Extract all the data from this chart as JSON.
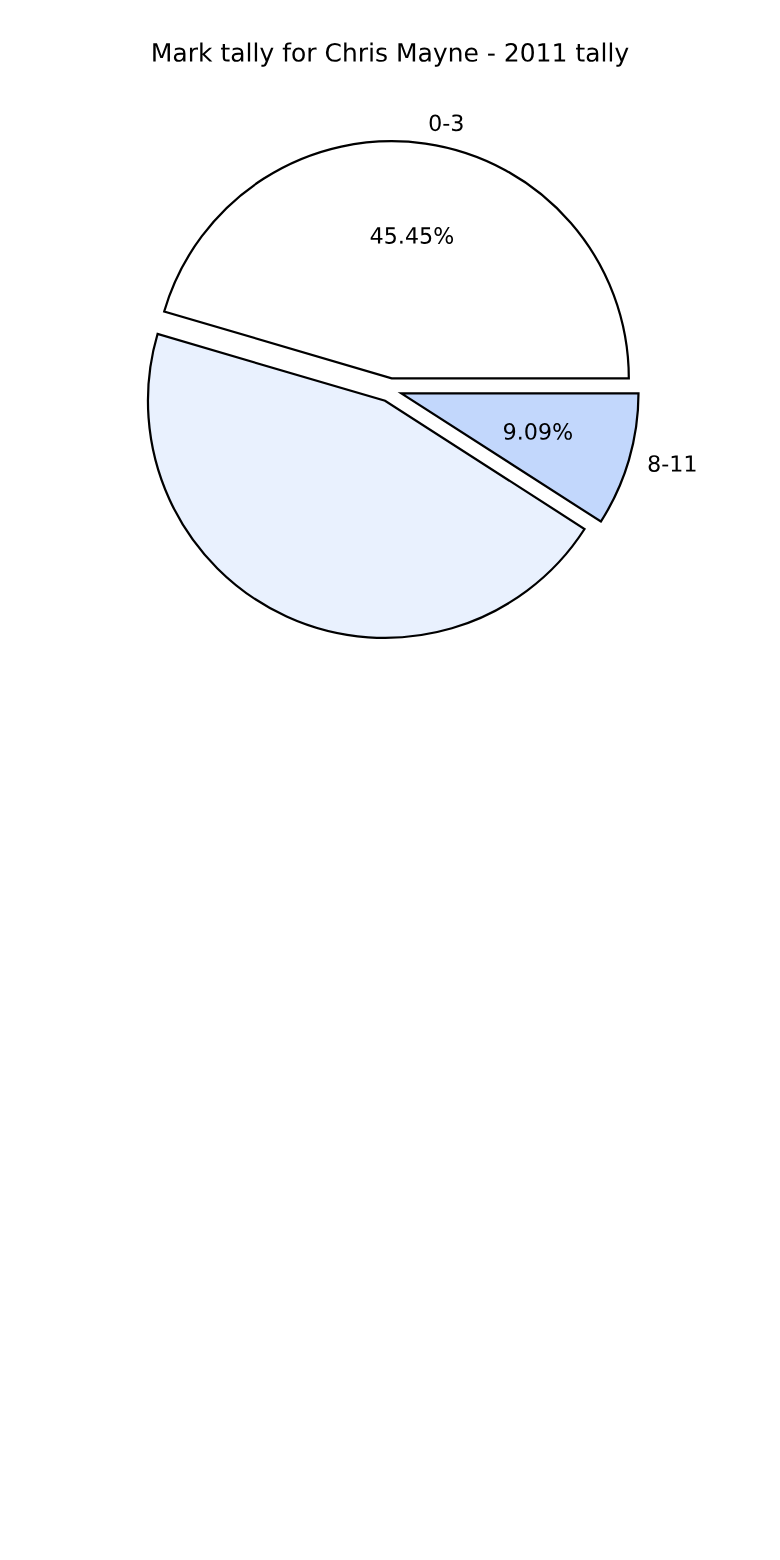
{
  "chart_data": {
    "type": "pie",
    "title": "Mark tally for Chris Mayne - 2011 tally",
    "categories": [
      "0-3",
      null,
      "8-11"
    ],
    "values": [
      45.45,
      45.45,
      9.09
    ],
    "colors": [
      "#ffffff",
      "#e9f1fe",
      "#c2d7fc"
    ],
    "value_labels": [
      "45.45%",
      null,
      "9.09%"
    ]
  }
}
